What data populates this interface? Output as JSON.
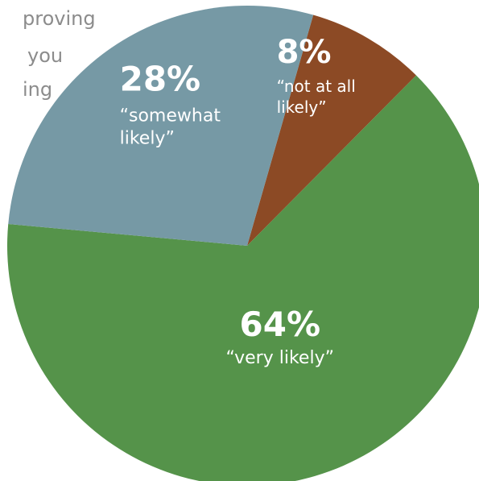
{
  "caption": {
    "lines": [
      "proving",
      "you",
      "ing"
    ]
  },
  "chart_data": {
    "type": "pie",
    "start_angle_deg": 16,
    "slices": [
      {
        "value": 8,
        "label": "8%",
        "desc": [
          "“not at all",
          "likely”"
        ],
        "color": "#8c4a25"
      },
      {
        "value": 64,
        "label": "64%",
        "desc": [
          "“very likely”"
        ],
        "color": "#55934a"
      },
      {
        "value": 28,
        "label": "28%",
        "desc": [
          "“somewhat",
          "likely”"
        ],
        "color": "#7699a5"
      }
    ]
  }
}
